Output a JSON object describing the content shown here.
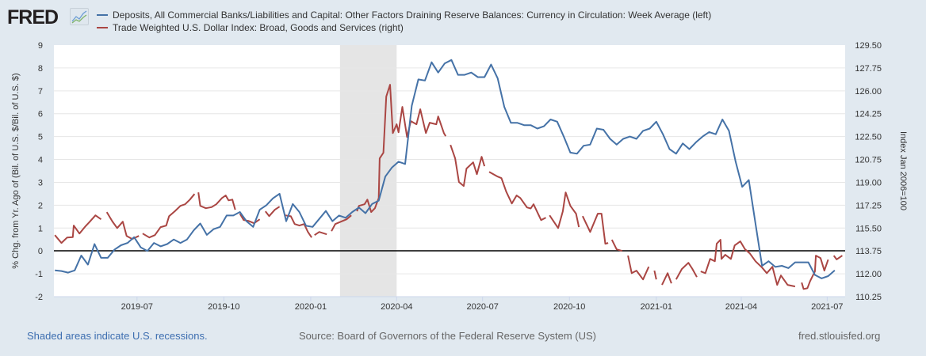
{
  "header": {
    "logo_text": "FRED"
  },
  "colors": {
    "series1": "#4572a7",
    "series2": "#aa4643",
    "recession": "#e5e5e5",
    "grid": "#e6e6e6",
    "zero_line": "#000000",
    "link": "#3d6eb0"
  },
  "footer": {
    "recession_note": "Shaded areas indicate U.S. recessions.",
    "source": "Source: Board of Governors of the Federal Reserve System (US)",
    "site": "fred.stlouisfed.org"
  },
  "chart_data": {
    "type": "line",
    "x_unit": "days since 2019-04-04",
    "x_range": [
      0,
      838
    ],
    "left_axis": {
      "label": "% Chg. from Yr. Ago of (Bil. of U.S. $/Bil. of U.S. $)",
      "range": [
        -2,
        9
      ],
      "ticks": [
        "9",
        "8",
        "7",
        "6",
        "5",
        "4",
        "3",
        "2",
        "1",
        "0",
        "-1",
        "-2"
      ]
    },
    "right_axis": {
      "label": "Index Jan 2006=100",
      "range": [
        110.25,
        129.5
      ],
      "ticks": [
        "129.50",
        "127.75",
        "126.00",
        "124.25",
        "122.50",
        "120.75",
        "119.00",
        "117.25",
        "115.50",
        "113.75",
        "112.00",
        "110.25"
      ]
    },
    "x_ticks": [
      {
        "label": "2019-07",
        "day": 88
      },
      {
        "label": "2019-10",
        "day": 180
      },
      {
        "label": "2020-01",
        "day": 272
      },
      {
        "label": "2020-04",
        "day": 363
      },
      {
        "label": "2020-07",
        "day": 454
      },
      {
        "label": "2020-10",
        "day": 546
      },
      {
        "label": "2021-01",
        "day": 638
      },
      {
        "label": "2021-04",
        "day": 728
      },
      {
        "label": "2021-07",
        "day": 819
      }
    ],
    "recessions": [
      {
        "start": "2020-02",
        "end": "2020-04",
        "start_day": 303,
        "end_day": 363
      }
    ],
    "grid": true,
    "legend_position": "top",
    "series": [
      {
        "name": "Deposits, All Commercial Banks/Liabilities and Capital: Other Factors Draining Reserve Balances: Currency in Circulation: Week Average (left)",
        "axis": "left",
        "frequency_days": 7,
        "first_day": 1,
        "values": [
          -0.85,
          -0.88,
          -0.95,
          -0.85,
          -0.2,
          -0.6,
          0.3,
          -0.3,
          -0.3,
          0.05,
          0.25,
          0.35,
          0.6,
          0.15,
          0,
          0.35,
          0.2,
          0.3,
          0.5,
          0.35,
          0.5,
          0.9,
          1.2,
          0.7,
          0.95,
          1.05,
          1.55,
          1.55,
          1.7,
          1.3,
          1.05,
          1.8,
          2.0,
          2.3,
          2.5,
          1.3,
          2.05,
          1.7,
          1.1,
          1.05,
          1.4,
          1.75,
          1.3,
          1.55,
          1.45,
          1.7,
          1.9,
          1.65,
          2.05,
          2.2,
          3.25,
          3.65,
          3.9,
          3.8,
          6.35,
          7.5,
          7.45,
          8.25,
          7.8,
          8.2,
          8.35,
          7.7,
          7.7,
          7.8,
          7.6,
          7.6,
          8.15,
          7.55,
          6.3,
          5.6,
          5.6,
          5.5,
          5.5,
          5.35,
          5.45,
          5.75,
          5.65,
          5.0,
          4.3,
          4.25,
          4.6,
          4.65,
          5.35,
          5.3,
          4.9,
          4.65,
          4.9,
          5.0,
          4.9,
          5.25,
          5.35,
          5.65,
          5.1,
          4.45,
          4.25,
          4.7,
          4.45,
          4.75,
          5.0,
          5.2,
          5.1,
          5.75,
          5.25,
          3.9,
          2.8,
          3.1,
          1.2,
          -0.65,
          -0.45,
          -0.7,
          -0.65,
          -0.75,
          -0.5,
          -0.5,
          -0.5,
          -1.05,
          -1.2,
          -1.1,
          -0.85
        ]
      },
      {
        "name": "Trade Weighted U.S. Dollar Index: Broad, Goods and Services (right)",
        "axis": "right",
        "segments": [
          [
            [
              1,
              114.96
            ],
            [
              8,
              114.36
            ],
            [
              14,
              114.78
            ],
            [
              20,
              114.8
            ],
            [
              21,
              115.69
            ],
            [
              27,
              115.08
            ],
            [
              33,
              115.6
            ],
            [
              38,
              115.99
            ],
            [
              44,
              116.47
            ],
            [
              50,
              116.17
            ]
          ],
          [
            [
              56,
              116.72
            ],
            [
              62,
              116.0
            ],
            [
              67,
              115.5
            ],
            [
              73,
              115.99
            ],
            [
              77,
              114.9
            ],
            [
              83,
              114.66
            ],
            [
              90,
              114.9
            ]
          ],
          [
            [
              94,
              115.08
            ],
            [
              101,
              114.78
            ],
            [
              107,
              114.96
            ],
            [
              113,
              115.57
            ],
            [
              119,
              115.69
            ],
            [
              122,
              116.41
            ],
            [
              128,
              116.78
            ],
            [
              134,
              117.2
            ],
            [
              139,
              117.32
            ],
            [
              144,
              117.68
            ],
            [
              149,
              118.11
            ]
          ],
          [
            [
              153,
              118.23
            ],
            [
              155,
              117.2
            ],
            [
              161,
              117.02
            ],
            [
              167,
              117.1
            ],
            [
              172,
              117.32
            ],
            [
              178,
              117.8
            ],
            [
              182,
              117.99
            ],
            [
              185,
              117.62
            ],
            [
              189,
              117.68
            ],
            [
              192,
              116.9
            ]
          ],
          [
            [
              197,
              116.6
            ],
            [
              201,
              116.11
            ],
            [
              206,
              116.05
            ],
            [
              212,
              115.87
            ],
            [
              218,
              116.17
            ]
          ],
          [
            [
              224,
              116.78
            ],
            [
              228,
              116.41
            ],
            [
              234,
              116.9
            ],
            [
              239,
              117.14
            ]
          ],
          [
            [
              245,
              116.47
            ],
            [
              251,
              116.4
            ],
            [
              255,
              115.81
            ],
            [
              260,
              115.69
            ],
            [
              265,
              115.81
            ],
            [
              269,
              115.2
            ],
            [
              273,
              114.78
            ]
          ],
          [
            [
              276,
              114.96
            ],
            [
              281,
              115.2
            ],
            [
              289,
              115.02
            ]
          ],
          [
            [
              294,
              115.26
            ],
            [
              298,
              115.81
            ],
            [
              304,
              115.99
            ],
            [
              310,
              116.17
            ],
            [
              315,
              116.47
            ]
          ],
          [
            [
              321,
              116.78
            ],
            [
              323,
              117.2
            ],
            [
              329,
              117.32
            ],
            [
              332,
              117.68
            ],
            [
              336,
              116.72
            ],
            [
              340,
              117.02
            ],
            [
              344,
              117.8
            ],
            [
              345,
              120.83
            ],
            [
              349,
              121.26
            ],
            [
              352,
              125.56
            ],
            [
              356,
              126.47
            ],
            [
              359,
              122.77
            ],
            [
              363,
              123.44
            ],
            [
              365,
              122.83
            ],
            [
              369,
              124.77
            ],
            [
              374,
              122.47
            ],
            [
              378,
              123.68
            ],
            [
              384,
              123.44
            ],
            [
              388,
              124.59
            ],
            [
              394,
              122.77
            ],
            [
              398,
              123.56
            ],
            [
              405,
              123.44
            ],
            [
              407,
              124.04
            ],
            [
              413,
              122.77
            ],
            [
              415,
              122.53
            ]
          ],
          [
            [
              420,
              121.86
            ],
            [
              425,
              120.83
            ],
            [
              429,
              119.02
            ],
            [
              434,
              118.72
            ],
            [
              437,
              120.05
            ],
            [
              444,
              120.53
            ],
            [
              448,
              119.62
            ],
            [
              453,
              120.95
            ],
            [
              456,
              120.23
            ]
          ],
          [
            [
              461,
              119.8
            ],
            [
              470,
              119.44
            ],
            [
              474,
              119.32
            ],
            [
              479,
              118.29
            ],
            [
              485,
              117.38
            ],
            [
              490,
              117.99
            ],
            [
              494,
              117.8
            ],
            [
              501,
              117.08
            ],
            [
              505,
              117.0
            ],
            [
              508,
              117.32
            ],
            [
              516,
              116.11
            ],
            [
              521,
              116.3
            ]
          ],
          [
            [
              525,
              116.47
            ],
            [
              534,
              115.5
            ],
            [
              539,
              116.78
            ],
            [
              542,
              118.23
            ],
            [
              547,
              117.2
            ],
            [
              553,
              116.6
            ],
            [
              556,
              115.57
            ]
          ],
          [
            [
              560,
              116.41
            ],
            [
              568,
              115.2
            ],
            [
              576,
              116.6
            ],
            [
              580,
              116.6
            ],
            [
              584,
              114.3
            ],
            [
              587,
              114.36
            ]
          ],
          [
            [
              591,
              114.6
            ],
            [
              596,
              113.87
            ],
            [
              602,
              113.75
            ]
          ],
          [
            [
              608,
              113.39
            ],
            [
              612,
              112.05
            ],
            [
              617,
              112.24
            ],
            [
              624,
              111.57
            ],
            [
              630,
              112.54
            ]
          ],
          [
            [
              636,
              112.24
            ],
            [
              638,
              111.57
            ]
          ],
          [
            [
              644,
              111.15
            ],
            [
              650,
              112.05
            ],
            [
              654,
              111.27
            ]
          ],
          [
            [
              659,
              111.57
            ],
            [
              665,
              112.36
            ],
            [
              672,
              112.84
            ],
            [
              676,
              112.4
            ],
            [
              681,
              111.75
            ]
          ],
          [
            [
              685,
              112.18
            ],
            [
              690,
              112.05
            ],
            [
              695,
              113.14
            ],
            [
              700,
              112.96
            ],
            [
              702,
              114.3
            ],
            [
              706,
              114.6
            ],
            [
              707,
              113.14
            ],
            [
              711,
              113.45
            ],
            [
              717,
              113.14
            ],
            [
              721,
              114.17
            ],
            [
              727,
              114.48
            ],
            [
              732,
              113.87
            ],
            [
              737,
              113.57
            ],
            [
              743,
              112.96
            ],
            [
              750,
              112.48
            ],
            [
              755,
              112.05
            ],
            [
              761,
              112.54
            ],
            [
              766,
              111.15
            ],
            [
              770,
              111.87
            ],
            [
              777,
              111.15
            ],
            [
              785,
              111.03
            ]
          ],
          [
            [
              792,
              111.33
            ],
            [
              794,
              110.84
            ],
            [
              798,
              110.9
            ],
            [
              801,
              111.45
            ],
            [
              806,
              112.18
            ],
            [
              807,
              113.39
            ],
            [
              812,
              113.2
            ],
            [
              816,
              112.24
            ],
            [
              820,
              113.08
            ]
          ],
          [
            [
              826,
              113.39
            ],
            [
              829,
              113.1
            ],
            [
              835,
              113.39
            ]
          ]
        ]
      }
    ]
  }
}
